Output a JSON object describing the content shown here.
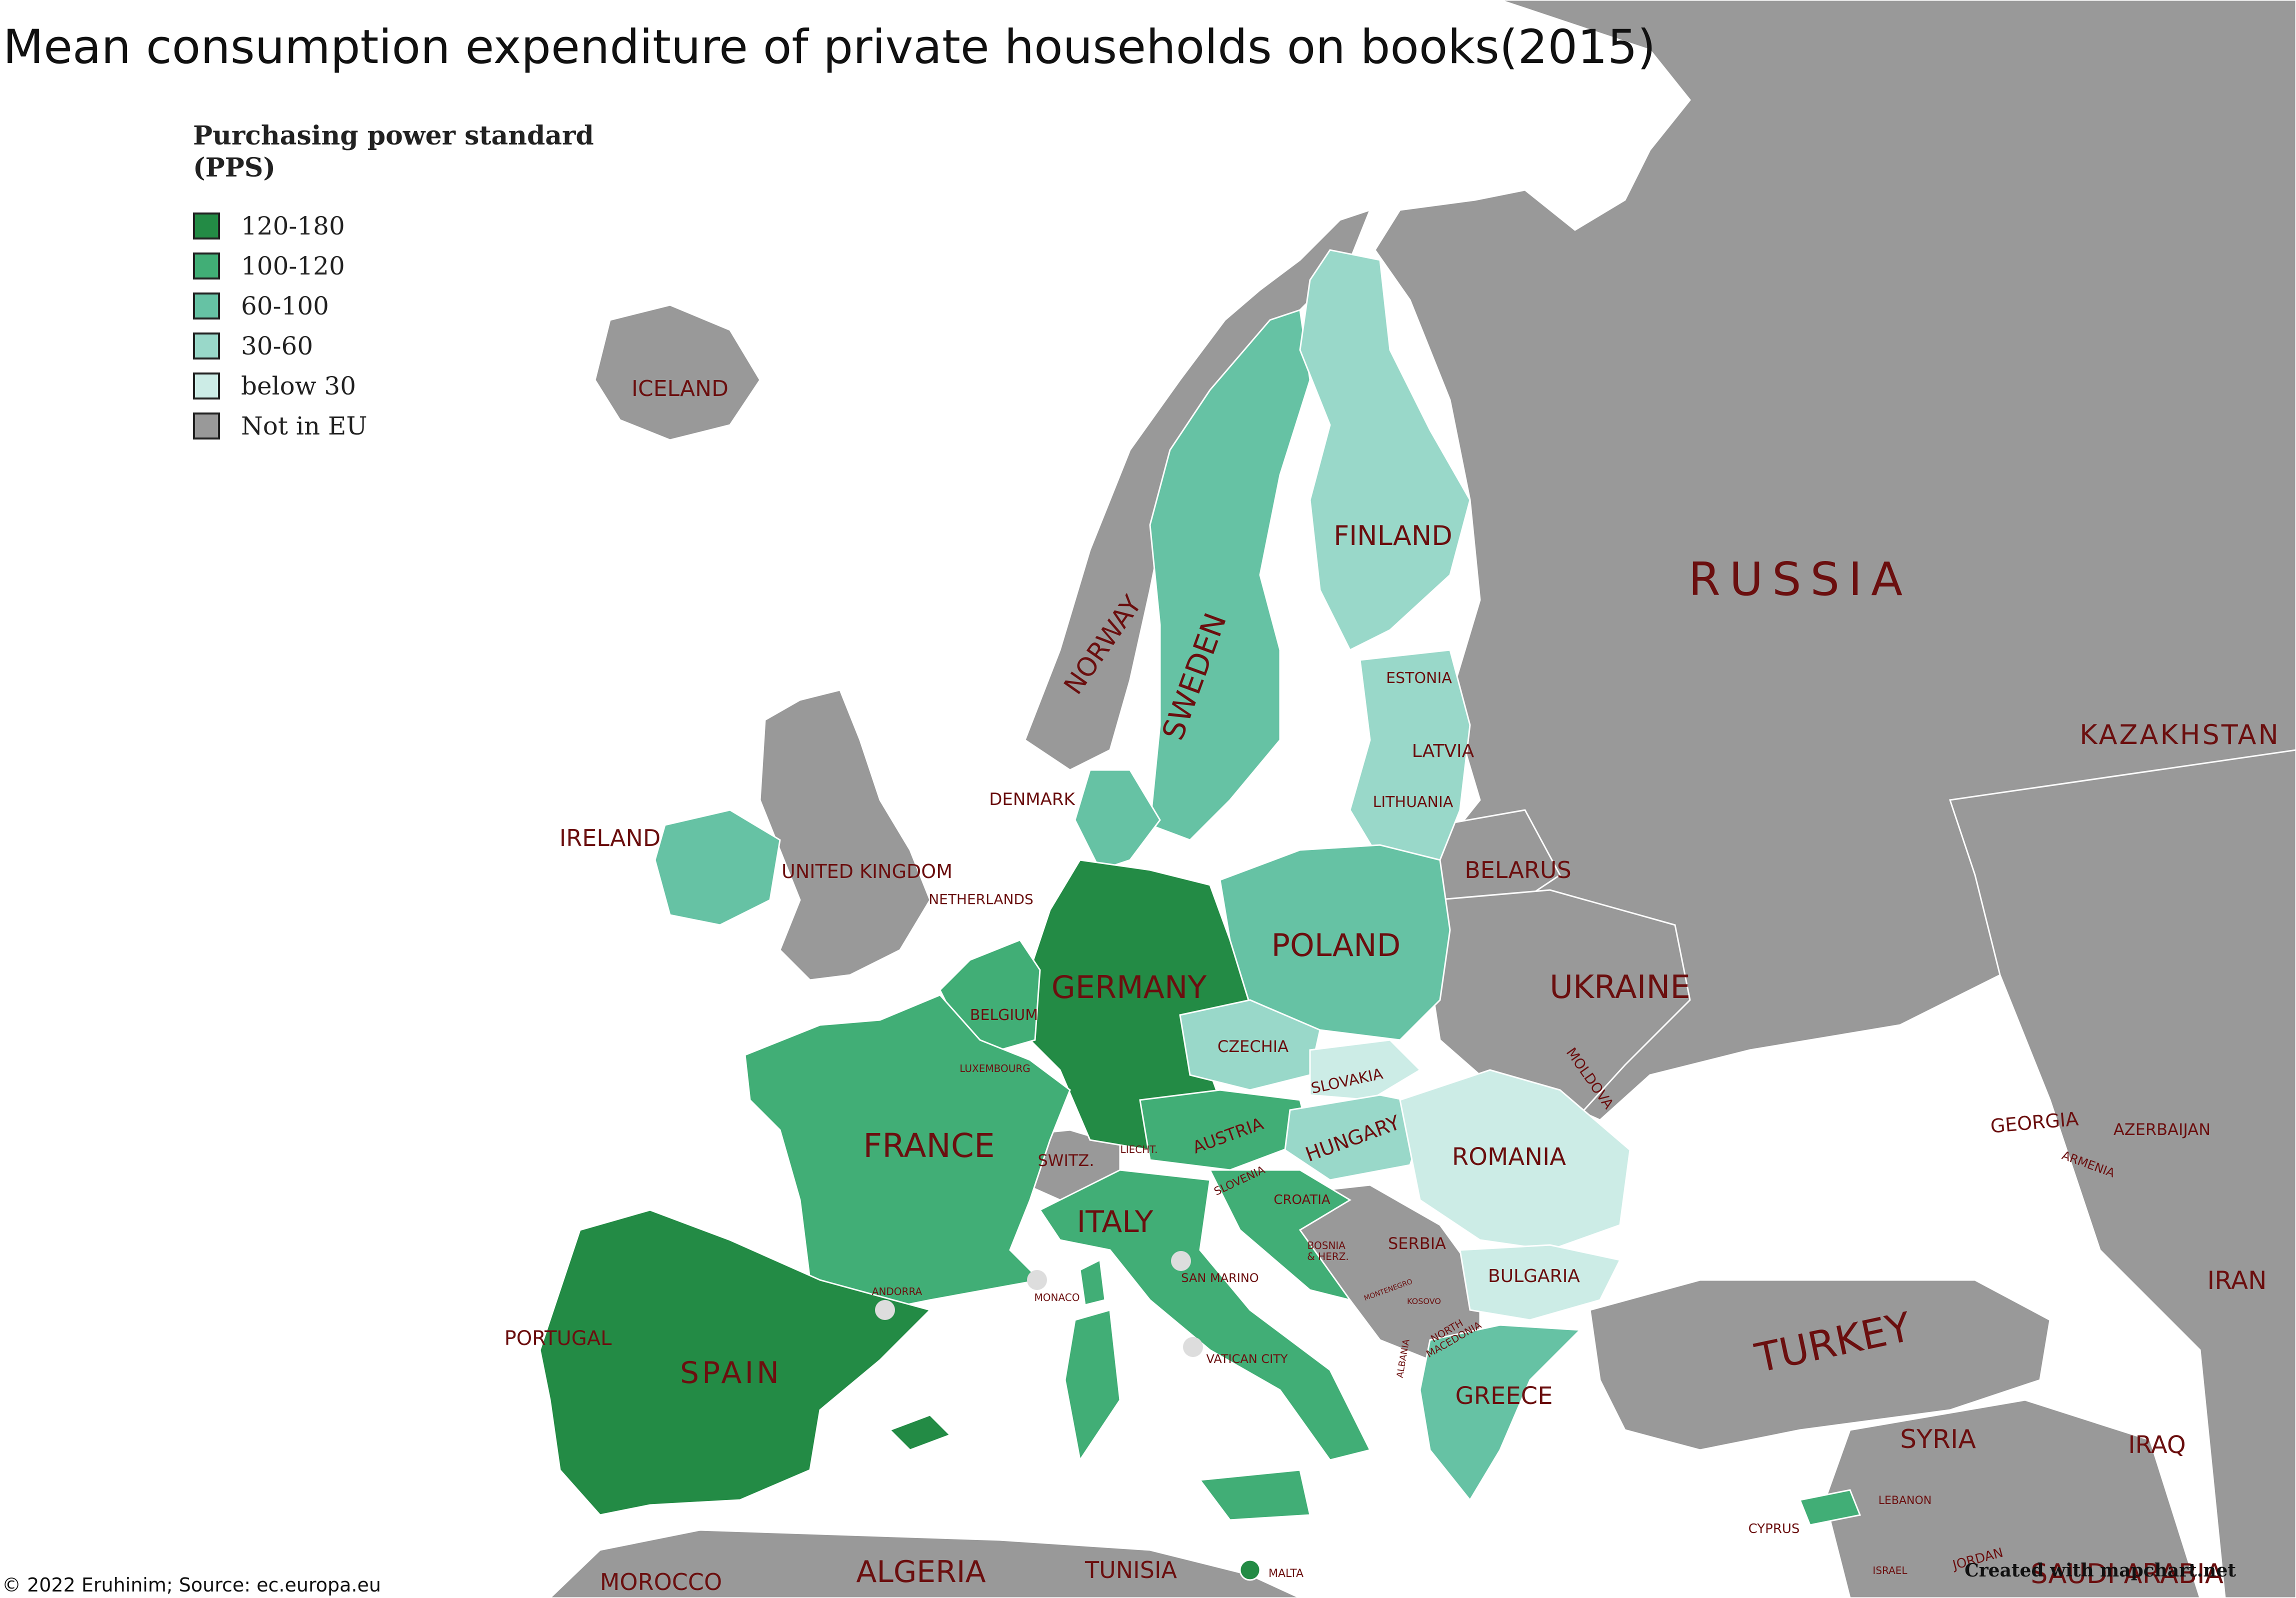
{
  "title": "Mean consumption expenditure of private households on books(2015)",
  "legend": {
    "title_line1": "Purchasing power standard",
    "title_line2": "(PPS)",
    "items": [
      {
        "label": "120-180",
        "color": "#238b45"
      },
      {
        "label": "100-120",
        "color": "#41ae76"
      },
      {
        "label": "60-100",
        "color": "#66c2a4"
      },
      {
        "label": "30-60",
        "color": "#99d8c9"
      },
      {
        "label": "below 30",
        "color": "#ccece6"
      },
      {
        "label": "Not in EU",
        "color": "#999999"
      }
    ]
  },
  "countries": {
    "iceland": "ICELAND",
    "norway": "NORWAY",
    "sweden": "SWEDEN",
    "finland": "FINLAND",
    "russia": "RUSSIA",
    "kazakhstan": "KAZAKHSTAN",
    "estonia": "ESTONIA",
    "latvia": "LATVIA",
    "lithuania": "LITHUANIA",
    "belarus": "BELARUS",
    "denmark": "DENMARK",
    "ireland": "IRELAND",
    "united_kingdom": "UNITED KINGDOM",
    "netherlands": "NETHERLANDS",
    "poland": "POLAND",
    "germany": "GERMANY",
    "belgium": "BELGIUM",
    "luxembourg": "LUXEMBOURG",
    "ukraine": "UKRAINE",
    "czechia": "CZECHIA",
    "moldova": "MOLDOVA",
    "slovakia": "SLOVAKIA",
    "austria": "AUSTRIA",
    "hungary": "HUNGARY",
    "france": "FRANCE",
    "switzerland": "SWITZ.",
    "liechtenstein": "LIECHT.",
    "romania": "ROMANIA",
    "georgia": "GEORGIA",
    "azerbaijan": "AZERBAIJAN",
    "armenia": "ARMENIA",
    "slovenia": "SLOVENIA",
    "croatia": "CROATIA",
    "italy": "ITALY",
    "bosnia": "BOSNIA\n& HERZ.",
    "serbia": "SERBIA",
    "montenegro": "MONTENEGRO",
    "kosovo": "KOSOVO",
    "north_macedonia": "NORTH\nMACEDONIA",
    "albania": "ALBANIA",
    "bulgaria": "BULGARIA",
    "andorra": "ANDORRA",
    "monaco": "MONACO",
    "san_marino": "SAN MARINO",
    "vatican": "VATICAN CITY",
    "portugal": "PORTUGAL",
    "spain": "SPAIN",
    "greece": "GREECE",
    "turkey": "TURKEY",
    "iran": "IRAN",
    "syria": "SYRIA",
    "iraq": "IRAQ",
    "lebanon": "LEBANON",
    "cyprus": "CYPRUS",
    "israel": "ISRAEL",
    "jordan": "JORDAN",
    "saudi_arabia": "SAUDI ARABIA",
    "morocco": "MOROCCO",
    "algeria": "ALGERIA",
    "tunisia": "TUNISIA",
    "malta": "MALTA"
  },
  "credits": {
    "source": "© 2022 Eruhinim; Source: ec.europa.eu",
    "created_with": "Created with mapchart.net"
  }
}
